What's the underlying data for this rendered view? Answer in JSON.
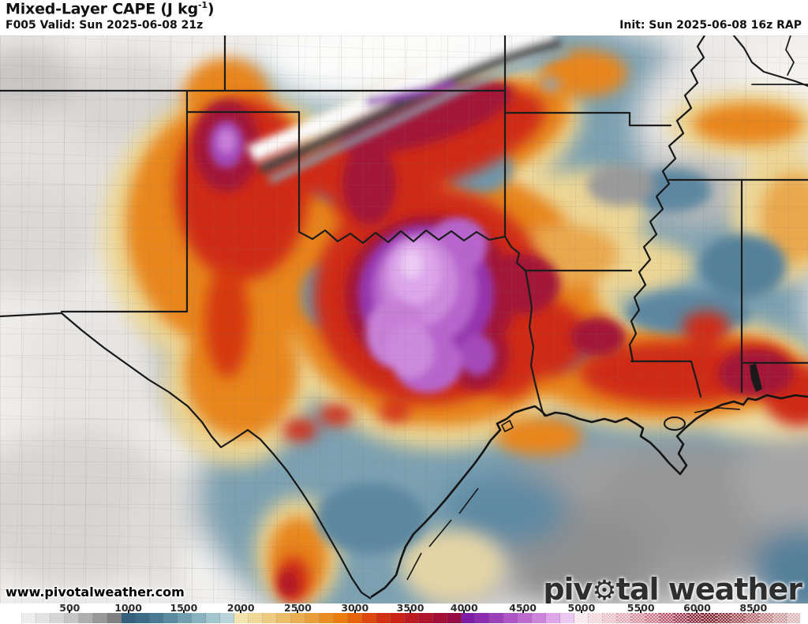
{
  "header": {
    "title_prefix": "Mixed-Layer CAPE (J kg",
    "title_sup": "-1",
    "title_suffix": ")",
    "subtitle": "F005 Valid: Sun 2025-06-08 21z",
    "init_label": "Init: Sun 2025-06-08 16z RAP"
  },
  "map": {
    "watermark": "www.pivotalweather.com",
    "logo_pre": "piv",
    "logo_gear": "⚙",
    "logo_post": "tal weather"
  },
  "colorbar": {
    "hatch_from": 40,
    "ticks": [
      {
        "label": "500",
        "pos": 0.078
      },
      {
        "label": "1000",
        "pos": 0.152
      },
      {
        "label": "1500",
        "pos": 0.222
      },
      {
        "label": "2000",
        "pos": 0.294
      },
      {
        "label": "2500",
        "pos": 0.366
      },
      {
        "label": "3000",
        "pos": 0.438
      },
      {
        "label": "3500",
        "pos": 0.508
      },
      {
        "label": "4000",
        "pos": 0.576
      },
      {
        "label": "4500",
        "pos": 0.65
      },
      {
        "label": "5000",
        "pos": 0.724
      },
      {
        "label": "5500",
        "pos": 0.799
      },
      {
        "label": "6000",
        "pos": 0.87
      },
      {
        "label": "8500",
        "pos": 0.941
      }
    ],
    "segments": [
      "#ffffff",
      "#ededed",
      "#e2e2e2",
      "#d6d6d6",
      "#c6c6c6",
      "#aeaeae",
      "#989898",
      "#808080",
      "#355f7c",
      "#3d6b86",
      "#4a7a92",
      "#5b8a9f",
      "#719eae",
      "#89b2bf",
      "#a1c4cd",
      "#bad5d9",
      "#f3e5ad",
      "#f0d997",
      "#eecb80",
      "#ebbd68",
      "#e9ae51",
      "#e89f3b",
      "#e98e25",
      "#ea7c10",
      "#e56309",
      "#dc480e",
      "#d23113",
      "#c82317",
      "#bb1b22",
      "#af152d",
      "#a21038",
      "#950c42",
      "#7d1ca4",
      "#8c2cae",
      "#9c40b9",
      "#ad55c4",
      "#bd6bcf",
      "#cd85dc",
      "#dea5e8",
      "#edc9f1",
      "#f6e2ea",
      "#f2d1d8",
      "#ecbfc8",
      "#e3a7b1",
      "#d88f9d",
      "#cb7386",
      "#b8556c",
      "#a03a50",
      "#872538",
      "#7e1f2b",
      "#8f333c",
      "#a04b52",
      "#b2656a",
      "#c08083",
      "#cd9a9c",
      "#dab5b5"
    ]
  }
}
